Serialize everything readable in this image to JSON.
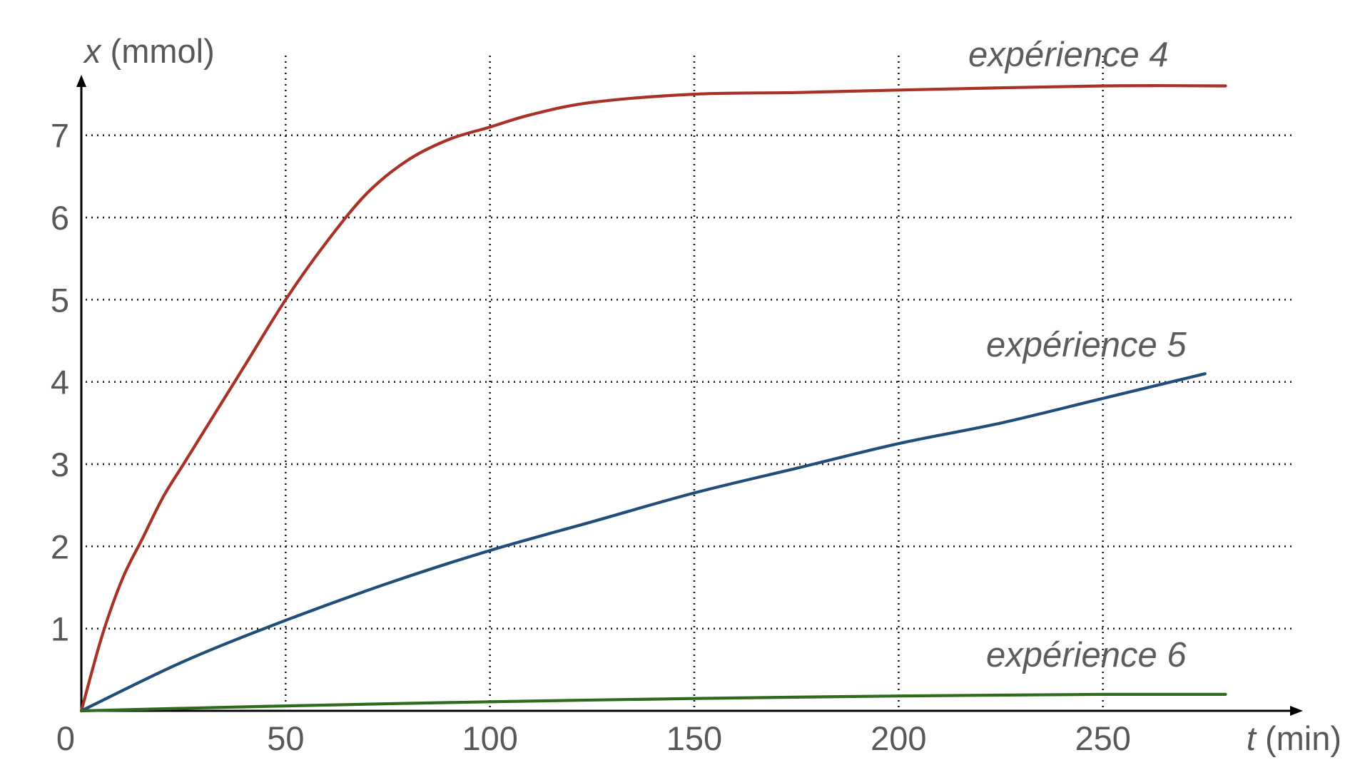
{
  "chart_data": {
    "type": "line",
    "title": "",
    "xlabel": {
      "var": "t",
      "unit": " (min)"
    },
    "ylabel": {
      "var": "x",
      "unit": " (mmol)"
    },
    "xlim": [
      0,
      300
    ],
    "ylim": [
      0,
      7.7
    ],
    "x_ticks": [
      50,
      100,
      150,
      200,
      250
    ],
    "y_ticks": [
      1,
      2,
      3,
      4,
      5,
      6,
      7
    ],
    "origin_label": "0",
    "grid": true,
    "legend": "none",
    "series": [
      {
        "name": "expérience 4",
        "color": "#a93226",
        "x": [
          0,
          5,
          10,
          15,
          20,
          25,
          30,
          40,
          50,
          60,
          70,
          80,
          90,
          100,
          110,
          125,
          150,
          175,
          200,
          250,
          280
        ],
        "y": [
          0,
          0.9,
          1.6,
          2.1,
          2.6,
          3.0,
          3.4,
          4.2,
          5.0,
          5.7,
          6.3,
          6.7,
          6.95,
          7.1,
          7.25,
          7.4,
          7.5,
          7.52,
          7.55,
          7.6,
          7.6
        ]
      },
      {
        "name": "expérience 5",
        "color": "#1f4e79",
        "x": [
          0,
          25,
          50,
          75,
          100,
          125,
          150,
          175,
          200,
          225,
          250,
          275
        ],
        "y": [
          0,
          0.6,
          1.1,
          1.55,
          1.95,
          2.3,
          2.65,
          2.95,
          3.25,
          3.5,
          3.8,
          4.1
        ]
      },
      {
        "name": "expérience 6",
        "color": "#2e6b1e",
        "x": [
          0,
          50,
          100,
          150,
          200,
          250,
          280
        ],
        "y": [
          0,
          0.06,
          0.11,
          0.15,
          0.18,
          0.2,
          0.2
        ]
      }
    ]
  }
}
